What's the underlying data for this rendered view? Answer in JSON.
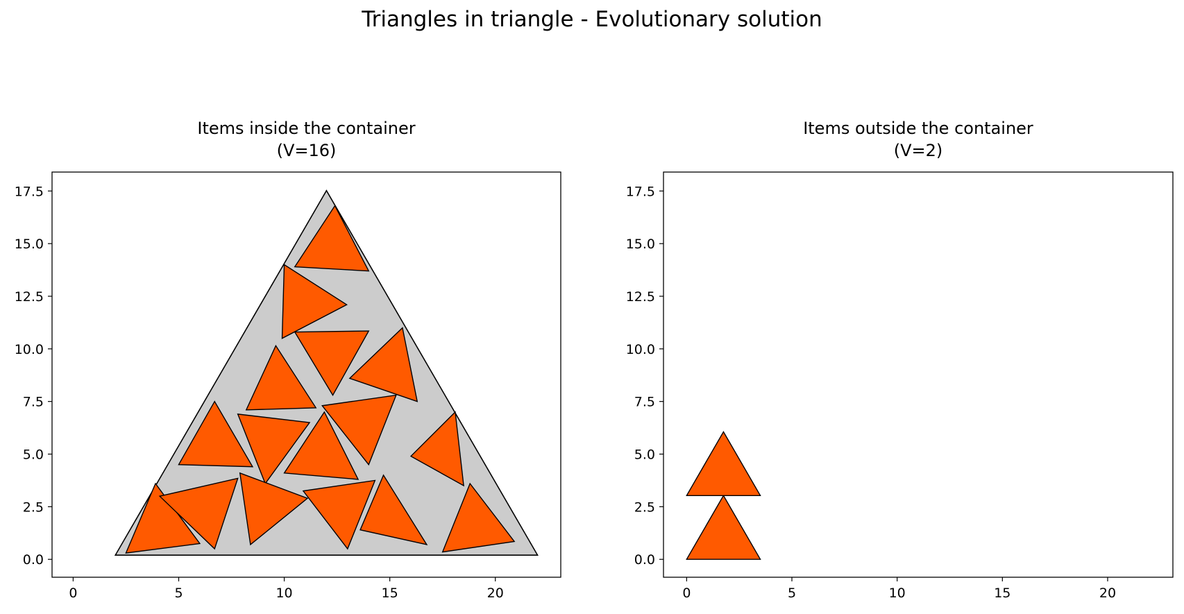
{
  "figure": {
    "title": "Triangles in triangle - Evolutionary solution"
  },
  "colors": {
    "item_fill": "#ff5a00",
    "container_fill": "#cccccc",
    "edge": "#000000",
    "background": "#ffffff"
  },
  "chart_data": [
    {
      "type": "scatter",
      "title": "Items inside the container\n(V=16)",
      "xlabel": "",
      "ylabel": "",
      "xlim": [
        -1.0,
        23.1
      ],
      "ylim": [
        -0.85,
        18.4
      ],
      "xticks": [
        0,
        5,
        10,
        15,
        20
      ],
      "yticks": [
        0.0,
        2.5,
        5.0,
        7.5,
        10.0,
        12.5,
        15.0,
        17.5
      ],
      "ytick_labels": [
        "0.0",
        "2.5",
        "5.0",
        "7.5",
        "10.0",
        "12.5",
        "15.0",
        "17.5"
      ],
      "grid": false,
      "container": [
        [
          2.0,
          0.2
        ],
        [
          22.0,
          0.2
        ],
        [
          12.0,
          17.52
        ]
      ],
      "items": [
        [
          [
            10.5,
            13.9
          ],
          [
            14.0,
            13.7
          ],
          [
            12.4,
            16.8
          ]
        ],
        [
          [
            10.0,
            14.0
          ],
          [
            9.9,
            10.5
          ],
          [
            12.96,
            12.1
          ]
        ],
        [
          [
            10.5,
            10.8
          ],
          [
            14.0,
            10.85
          ],
          [
            12.3,
            7.8
          ]
        ],
        [
          [
            15.6,
            11.0
          ],
          [
            16.3,
            7.5
          ],
          [
            13.1,
            8.6
          ]
        ],
        [
          [
            8.2,
            7.1
          ],
          [
            11.5,
            7.2
          ],
          [
            9.6,
            10.15
          ]
        ],
        [
          [
            6.7,
            7.5
          ],
          [
            5.0,
            4.5
          ],
          [
            8.5,
            4.4
          ]
        ],
        [
          [
            7.8,
            6.9
          ],
          [
            11.2,
            6.5
          ],
          [
            9.1,
            3.6
          ]
        ],
        [
          [
            11.8,
            7.3
          ],
          [
            15.3,
            7.8
          ],
          [
            14.0,
            4.5
          ]
        ],
        [
          [
            11.9,
            7.0
          ],
          [
            10.0,
            4.1
          ],
          [
            13.5,
            3.8
          ]
        ],
        [
          [
            18.1,
            7.0
          ],
          [
            16.0,
            4.9
          ],
          [
            18.5,
            3.5
          ]
        ],
        [
          [
            3.9,
            3.6
          ],
          [
            2.5,
            0.3
          ],
          [
            6.0,
            0.75
          ]
        ],
        [
          [
            4.1,
            3.0
          ],
          [
            7.8,
            3.85
          ],
          [
            6.7,
            0.5
          ]
        ],
        [
          [
            7.9,
            4.1
          ],
          [
            11.1,
            2.9
          ],
          [
            8.4,
            0.7
          ]
        ],
        [
          [
            10.9,
            3.25
          ],
          [
            14.3,
            3.75
          ],
          [
            13.0,
            0.5
          ]
        ],
        [
          [
            14.7,
            4.0
          ],
          [
            13.6,
            1.4
          ],
          [
            16.75,
            0.7
          ]
        ],
        [
          [
            18.8,
            3.6
          ],
          [
            17.5,
            0.35
          ],
          [
            20.9,
            0.85
          ]
        ]
      ]
    },
    {
      "type": "scatter",
      "title": "Items outside the container\n(V=2)",
      "xlabel": "",
      "ylabel": "",
      "xlim": [
        -1.1,
        23.1
      ],
      "ylim": [
        -0.85,
        18.4
      ],
      "xticks": [
        0,
        5,
        10,
        15,
        20
      ],
      "yticks": [
        0.0,
        2.5,
        5.0,
        7.5,
        10.0,
        12.5,
        15.0,
        17.5
      ],
      "ytick_labels": [
        "0.0",
        "2.5",
        "5.0",
        "7.5",
        "10.0",
        "12.5",
        "15.0",
        "17.5"
      ],
      "grid": false,
      "container": null,
      "items": [
        [
          [
            0.0,
            0.0
          ],
          [
            3.5,
            0.0
          ],
          [
            1.75,
            3.03
          ]
        ],
        [
          [
            0.0,
            3.03
          ],
          [
            3.5,
            3.03
          ],
          [
            1.75,
            6.06
          ]
        ]
      ]
    }
  ]
}
